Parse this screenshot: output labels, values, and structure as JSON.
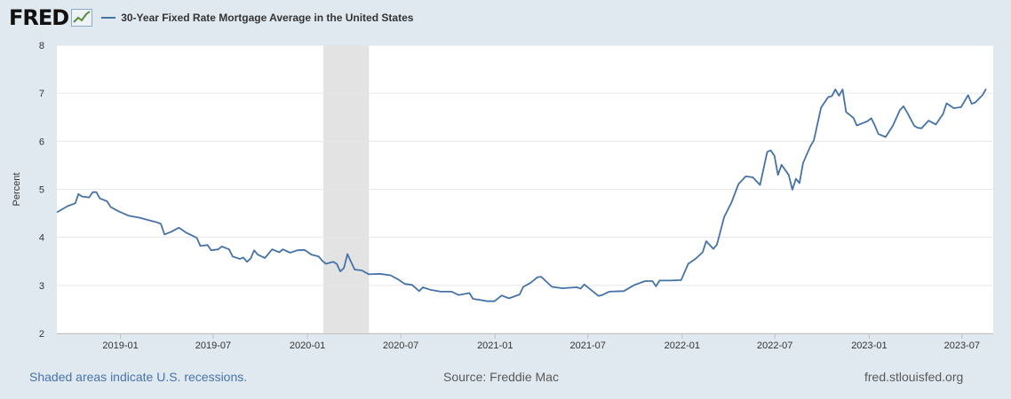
{
  "header": {
    "logo_text": "FRED",
    "logo_icon": "chart-trend-icon",
    "series_title": "30-Year Fixed Rate Mortgage Average in the United States",
    "series_color": "#4572a7"
  },
  "footer": {
    "recession_note": "Shaded areas indicate U.S. recessions.",
    "source": "Source: Freddie Mac",
    "site": "fred.stlouisfed.org"
  },
  "chart_data": {
    "type": "line",
    "ylabel": "Percent",
    "ylim": [
      2,
      8
    ],
    "yticks": [
      "2",
      "3",
      "4",
      "5",
      "6",
      "7",
      "8"
    ],
    "xlim": [
      "2018-08-30",
      "2023-08-31"
    ],
    "xticks": [
      "2019-01",
      "2019-07",
      "2020-01",
      "2020-07",
      "2021-01",
      "2021-07",
      "2022-01",
      "2022-07",
      "2023-01",
      "2023-07"
    ],
    "grid": "horizontal",
    "recession_shading": [
      [
        "2020-02-01",
        "2020-04-30"
      ]
    ],
    "series": [
      {
        "color": "#4572a7",
        "points": [
          [
            "2018-08-30",
            4.52
          ],
          [
            "2018-09-20",
            4.65
          ],
          [
            "2018-10-05",
            4.71
          ],
          [
            "2018-10-11",
            4.9
          ],
          [
            "2018-10-18",
            4.85
          ],
          [
            "2018-11-01",
            4.83
          ],
          [
            "2018-11-08",
            4.94
          ],
          [
            "2018-11-15",
            4.94
          ],
          [
            "2018-11-22",
            4.81
          ],
          [
            "2018-12-06",
            4.75
          ],
          [
            "2018-12-13",
            4.63
          ],
          [
            "2018-12-27",
            4.55
          ],
          [
            "2019-01-17",
            4.45
          ],
          [
            "2019-02-07",
            4.41
          ],
          [
            "2019-02-28",
            4.35
          ],
          [
            "2019-03-14",
            4.31
          ],
          [
            "2019-03-21",
            4.28
          ],
          [
            "2019-03-28",
            4.06
          ],
          [
            "2019-04-11",
            4.12
          ],
          [
            "2019-04-25",
            4.2
          ],
          [
            "2019-05-09",
            4.1
          ],
          [
            "2019-05-30",
            3.99
          ],
          [
            "2019-06-06",
            3.82
          ],
          [
            "2019-06-20",
            3.84
          ],
          [
            "2019-06-27",
            3.73
          ],
          [
            "2019-07-11",
            3.75
          ],
          [
            "2019-07-18",
            3.81
          ],
          [
            "2019-08-01",
            3.75
          ],
          [
            "2019-08-08",
            3.6
          ],
          [
            "2019-08-22",
            3.55
          ],
          [
            "2019-08-29",
            3.58
          ],
          [
            "2019-09-05",
            3.49
          ],
          [
            "2019-09-12",
            3.56
          ],
          [
            "2019-09-19",
            3.73
          ],
          [
            "2019-09-26",
            3.64
          ],
          [
            "2019-10-10",
            3.57
          ],
          [
            "2019-10-24",
            3.75
          ],
          [
            "2019-11-07",
            3.69
          ],
          [
            "2019-11-14",
            3.75
          ],
          [
            "2019-11-28",
            3.68
          ],
          [
            "2019-12-12",
            3.73
          ],
          [
            "2019-12-26",
            3.74
          ],
          [
            "2020-01-09",
            3.64
          ],
          [
            "2020-01-23",
            3.6
          ],
          [
            "2020-01-30",
            3.51
          ],
          [
            "2020-02-06",
            3.45
          ],
          [
            "2020-02-20",
            3.49
          ],
          [
            "2020-02-27",
            3.45
          ],
          [
            "2020-03-05",
            3.29
          ],
          [
            "2020-03-12",
            3.36
          ],
          [
            "2020-03-19",
            3.65
          ],
          [
            "2020-04-02",
            3.33
          ],
          [
            "2020-04-16",
            3.31
          ],
          [
            "2020-04-30",
            3.23
          ],
          [
            "2020-05-21",
            3.24
          ],
          [
            "2020-06-11",
            3.21
          ],
          [
            "2020-06-25",
            3.13
          ],
          [
            "2020-07-09",
            3.03
          ],
          [
            "2020-07-23",
            3.01
          ],
          [
            "2020-08-06",
            2.88
          ],
          [
            "2020-08-13",
            2.96
          ],
          [
            "2020-08-27",
            2.91
          ],
          [
            "2020-09-17",
            2.87
          ],
          [
            "2020-10-08",
            2.87
          ],
          [
            "2020-10-22",
            2.8
          ],
          [
            "2020-11-12",
            2.84
          ],
          [
            "2020-11-19",
            2.72
          ],
          [
            "2020-12-17",
            2.67
          ],
          [
            "2020-12-31",
            2.67
          ],
          [
            "2021-01-14",
            2.79
          ],
          [
            "2021-01-28",
            2.73
          ],
          [
            "2021-02-18",
            2.81
          ],
          [
            "2021-02-25",
            2.97
          ],
          [
            "2021-03-11",
            3.05
          ],
          [
            "2021-03-25",
            3.17
          ],
          [
            "2021-04-01",
            3.18
          ],
          [
            "2021-04-22",
            2.97
          ],
          [
            "2021-05-13",
            2.94
          ],
          [
            "2021-05-27",
            2.95
          ],
          [
            "2021-06-10",
            2.96
          ],
          [
            "2021-06-17",
            2.93
          ],
          [
            "2021-06-24",
            3.02
          ],
          [
            "2021-07-08",
            2.9
          ],
          [
            "2021-07-22",
            2.78
          ],
          [
            "2021-07-29",
            2.8
          ],
          [
            "2021-08-12",
            2.87
          ],
          [
            "2021-09-09",
            2.88
          ],
          [
            "2021-09-30",
            3.01
          ],
          [
            "2021-10-21",
            3.09
          ],
          [
            "2021-11-04",
            3.09
          ],
          [
            "2021-11-11",
            2.98
          ],
          [
            "2021-11-18",
            3.1
          ],
          [
            "2021-12-09",
            3.1
          ],
          [
            "2021-12-30",
            3.11
          ],
          [
            "2022-01-13",
            3.45
          ],
          [
            "2022-01-27",
            3.55
          ],
          [
            "2022-02-10",
            3.69
          ],
          [
            "2022-02-17",
            3.92
          ],
          [
            "2022-03-03",
            3.76
          ],
          [
            "2022-03-10",
            3.85
          ],
          [
            "2022-03-24",
            4.42
          ],
          [
            "2022-04-07",
            4.72
          ],
          [
            "2022-04-21",
            5.11
          ],
          [
            "2022-05-05",
            5.27
          ],
          [
            "2022-05-19",
            5.25
          ],
          [
            "2022-06-02",
            5.09
          ],
          [
            "2022-06-16",
            5.78
          ],
          [
            "2022-06-23",
            5.81
          ],
          [
            "2022-06-30",
            5.7
          ],
          [
            "2022-07-07",
            5.3
          ],
          [
            "2022-07-14",
            5.51
          ],
          [
            "2022-07-28",
            5.3
          ],
          [
            "2022-08-04",
            4.99
          ],
          [
            "2022-08-11",
            5.22
          ],
          [
            "2022-08-18",
            5.13
          ],
          [
            "2022-08-25",
            5.55
          ],
          [
            "2022-09-08",
            5.89
          ],
          [
            "2022-09-15",
            6.02
          ],
          [
            "2022-09-29",
            6.7
          ],
          [
            "2022-10-13",
            6.92
          ],
          [
            "2022-10-20",
            6.94
          ],
          [
            "2022-10-27",
            7.08
          ],
          [
            "2022-11-03",
            6.95
          ],
          [
            "2022-11-10",
            7.08
          ],
          [
            "2022-11-17",
            6.61
          ],
          [
            "2022-12-01",
            6.49
          ],
          [
            "2022-12-08",
            6.33
          ],
          [
            "2022-12-29",
            6.42
          ],
          [
            "2023-01-05",
            6.48
          ],
          [
            "2023-01-12",
            6.33
          ],
          [
            "2023-01-19",
            6.15
          ],
          [
            "2023-02-02",
            6.09
          ],
          [
            "2023-02-16",
            6.32
          ],
          [
            "2023-03-02",
            6.65
          ],
          [
            "2023-03-09",
            6.73
          ],
          [
            "2023-03-16",
            6.6
          ],
          [
            "2023-03-30",
            6.32
          ],
          [
            "2023-04-06",
            6.28
          ],
          [
            "2023-04-13",
            6.27
          ],
          [
            "2023-04-27",
            6.43
          ],
          [
            "2023-05-04",
            6.39
          ],
          [
            "2023-05-11",
            6.35
          ],
          [
            "2023-05-25",
            6.57
          ],
          [
            "2023-06-01",
            6.79
          ],
          [
            "2023-06-15",
            6.69
          ],
          [
            "2023-06-29",
            6.71
          ],
          [
            "2023-07-13",
            6.96
          ],
          [
            "2023-07-20",
            6.78
          ],
          [
            "2023-07-27",
            6.81
          ],
          [
            "2023-08-10",
            6.96
          ],
          [
            "2023-08-17",
            7.09
          ]
        ]
      }
    ]
  }
}
